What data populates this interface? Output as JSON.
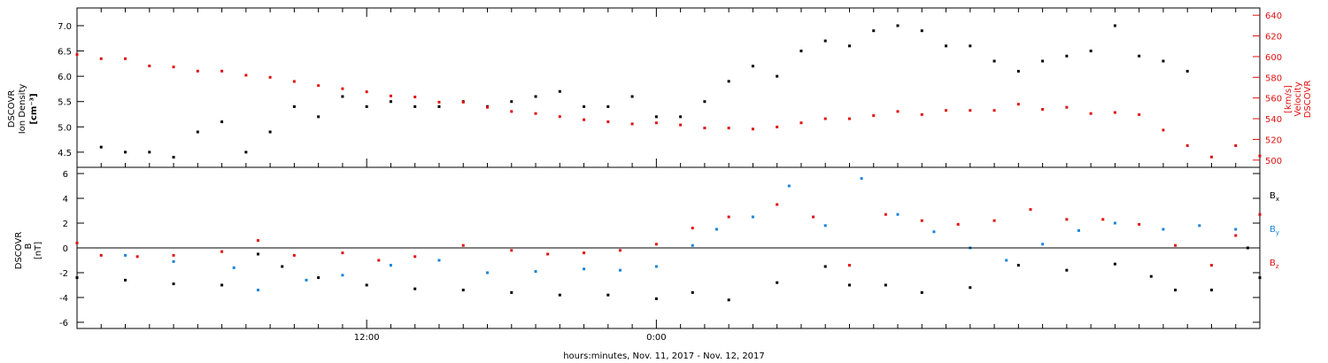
{
  "chart_data": [
    {
      "type": "scatter",
      "panel": "top",
      "ylabel_left": [
        "DSCOVR",
        "Ion Density",
        "[cm⁻³]"
      ],
      "ylabel_right": [
        "DSCOVR",
        "Velocity",
        "[km/s]"
      ],
      "left_ticks": [
        "7.0",
        "6.5",
        "6.0",
        "5.5",
        "5.0",
        "4.5"
      ],
      "right_ticks": [
        "640",
        "620",
        "600",
        "580",
        "560",
        "540",
        "520",
        "500"
      ],
      "left_ylim": [
        4.2,
        7.35
      ],
      "right_ylim": [
        493,
        647
      ],
      "series": [
        {
          "name": "",
          "axis": "left",
          "color": "#000000",
          "points": [
            [
              1.0,
              4.6
            ],
            [
              2.0,
              4.5
            ],
            [
              3.0,
              4.5
            ],
            [
              4.0,
              4.4
            ],
            [
              5.0,
              4.9
            ],
            [
              6.0,
              5.1
            ],
            [
              7.0,
              4.5
            ],
            [
              8.0,
              4.9
            ],
            [
              9.0,
              5.4
            ],
            [
              10.0,
              5.2
            ],
            [
              11.0,
              5.6
            ],
            [
              12.0,
              5.4
            ],
            [
              13.0,
              5.5
            ],
            [
              14.0,
              5.4
            ],
            [
              15.0,
              5.4
            ],
            [
              16.0,
              5.5
            ],
            [
              17.0,
              5.4
            ],
            [
              18.0,
              5.5
            ],
            [
              19.0,
              5.6
            ],
            [
              20.0,
              5.7
            ],
            [
              21.0,
              5.4
            ],
            [
              22.0,
              5.4
            ],
            [
              23.0,
              5.6
            ],
            [
              24.0,
              5.2
            ],
            [
              25.0,
              5.2
            ],
            [
              26.0,
              5.5
            ],
            [
              27.0,
              5.9
            ],
            [
              28.0,
              6.2
            ],
            [
              29.0,
              6.0
            ],
            [
              30.0,
              6.5
            ],
            [
              31.0,
              6.7
            ],
            [
              32.0,
              6.6
            ],
            [
              33.0,
              6.9
            ],
            [
              34.0,
              7.0
            ],
            [
              35.0,
              6.9
            ],
            [
              36.0,
              6.6
            ],
            [
              37.0,
              6.6
            ],
            [
              38.0,
              6.3
            ],
            [
              39.0,
              6.1
            ],
            [
              40.0,
              6.3
            ],
            [
              41.0,
              6.4
            ],
            [
              42.0,
              6.5
            ],
            [
              43.0,
              7.0
            ],
            [
              44.0,
              6.4
            ],
            [
              45.0,
              6.3
            ],
            [
              46.0,
              6.1
            ]
          ]
        },
        {
          "name": "",
          "axis": "right",
          "color": "#e01010",
          "points": [
            [
              0.0,
              602
            ],
            [
              1.0,
              598
            ],
            [
              2.0,
              598
            ],
            [
              3.0,
              591
            ],
            [
              4.0,
              590
            ],
            [
              5.0,
              586
            ],
            [
              6.0,
              586
            ],
            [
              7.0,
              582
            ],
            [
              8.0,
              580
            ],
            [
              9.0,
              576
            ],
            [
              10.0,
              572
            ],
            [
              11.0,
              569
            ],
            [
              12.0,
              566
            ],
            [
              13.0,
              562
            ],
            [
              14.0,
              561
            ],
            [
              15.0,
              556
            ],
            [
              16.0,
              556
            ],
            [
              17.0,
              551
            ],
            [
              18.0,
              547
            ],
            [
              19.0,
              545
            ],
            [
              20.0,
              542
            ],
            [
              21.0,
              539
            ],
            [
              22.0,
              537
            ],
            [
              23.0,
              535
            ],
            [
              24.0,
              536
            ],
            [
              25.0,
              534
            ],
            [
              26.0,
              531
            ],
            [
              27.0,
              531
            ],
            [
              28.0,
              530
            ],
            [
              29.0,
              532
            ],
            [
              30.0,
              536
            ],
            [
              31.0,
              540
            ],
            [
              32.0,
              540
            ],
            [
              33.0,
              543
            ],
            [
              34.0,
              547
            ],
            [
              35.0,
              544
            ],
            [
              36.0,
              548
            ],
            [
              37.0,
              548
            ],
            [
              38.0,
              548
            ],
            [
              39.0,
              554
            ],
            [
              40.0,
              549
            ],
            [
              41.0,
              551
            ],
            [
              42.0,
              545
            ],
            [
              43.0,
              546
            ],
            [
              44.0,
              544
            ],
            [
              45.0,
              529
            ],
            [
              46.0,
              514
            ],
            [
              47.0,
              503
            ],
            [
              48.0,
              514
            ],
            [
              49.0,
              504
            ]
          ]
        }
      ]
    },
    {
      "type": "scatter",
      "panel": "bottom",
      "ylabel": [
        "DSCOVR",
        "B",
        "[nT]"
      ],
      "yticks": [
        "6",
        "4",
        "2",
        "0",
        "-2",
        "-4",
        "-6"
      ],
      "ylim": [
        -6.5,
        6.5
      ],
      "reference_line": 0,
      "legend": [
        "B",
        "B",
        "B"
      ],
      "legend_subscripts": [
        "x",
        "y",
        "z"
      ],
      "legend_position": "right",
      "series": [
        {
          "name": "Bx",
          "color": "#000000",
          "points": [
            [
              0.0,
              -2.4
            ],
            [
              2.0,
              -2.6
            ],
            [
              4.0,
              -2.9
            ],
            [
              6.0,
              -3.0
            ],
            [
              7.5,
              -0.5
            ],
            [
              8.5,
              -1.5
            ],
            [
              10.0,
              -2.4
            ],
            [
              12.0,
              -3.0
            ],
            [
              14.0,
              -3.3
            ],
            [
              16.0,
              -3.4
            ],
            [
              18.0,
              -3.6
            ],
            [
              20.0,
              -3.8
            ],
            [
              22.0,
              -3.8
            ],
            [
              24.0,
              -4.1
            ],
            [
              25.5,
              -3.6
            ],
            [
              27.0,
              -4.2
            ],
            [
              29.0,
              -2.8
            ],
            [
              31.0,
              -1.5
            ],
            [
              32.0,
              -3.0
            ],
            [
              33.5,
              -3.0
            ],
            [
              35.0,
              -3.6
            ],
            [
              37.0,
              -3.2
            ],
            [
              39.0,
              -1.4
            ],
            [
              41.0,
              -1.8
            ],
            [
              43.0,
              -1.3
            ],
            [
              44.5,
              -2.3
            ],
            [
              45.5,
              -3.4
            ],
            [
              47.0,
              -3.4
            ],
            [
              48.5,
              0.0
            ],
            [
              49.0,
              -2.4
            ]
          ]
        },
        {
          "name": "By",
          "color": "#1a84d8",
          "points": [
            [
              0.0,
              0.4
            ],
            [
              2.0,
              -0.6
            ],
            [
              4.0,
              -1.1
            ],
            [
              6.5,
              -1.6
            ],
            [
              7.5,
              -3.4
            ],
            [
              9.5,
              -2.6
            ],
            [
              11.0,
              -2.2
            ],
            [
              13.0,
              -1.4
            ],
            [
              15.0,
              -1.0
            ],
            [
              17.0,
              -2.0
            ],
            [
              19.0,
              -1.9
            ],
            [
              21.0,
              -1.7
            ],
            [
              22.5,
              -1.8
            ],
            [
              24.0,
              -1.5
            ],
            [
              25.5,
              0.2
            ],
            [
              26.5,
              1.5
            ],
            [
              28.0,
              2.5
            ],
            [
              29.5,
              5.0
            ],
            [
              31.0,
              1.8
            ],
            [
              32.5,
              5.6
            ],
            [
              34.0,
              2.7
            ],
            [
              35.5,
              1.3
            ],
            [
              37.0,
              0.0
            ],
            [
              38.5,
              -1.0
            ],
            [
              40.0,
              0.3
            ],
            [
              41.5,
              1.4
            ],
            [
              43.0,
              2.0
            ],
            [
              45.0,
              1.5
            ],
            [
              46.5,
              1.8
            ],
            [
              48.0,
              1.5
            ],
            [
              49.0,
              2.7
            ]
          ]
        },
        {
          "name": "Bz",
          "color": "#e01010",
          "points": [
            [
              0.0,
              0.4
            ],
            [
              1.0,
              -0.6
            ],
            [
              2.5,
              -0.7
            ],
            [
              4.0,
              -0.6
            ],
            [
              6.0,
              -0.3
            ],
            [
              7.5,
              0.6
            ],
            [
              9.0,
              -0.6
            ],
            [
              11.0,
              -0.4
            ],
            [
              12.5,
              -1.0
            ],
            [
              14.0,
              -0.7
            ],
            [
              16.0,
              0.2
            ],
            [
              18.0,
              -0.2
            ],
            [
              19.5,
              -0.5
            ],
            [
              21.0,
              -0.4
            ],
            [
              22.5,
              -0.2
            ],
            [
              24.0,
              0.3
            ],
            [
              25.5,
              1.6
            ],
            [
              27.0,
              2.5
            ],
            [
              29.0,
              3.5
            ],
            [
              30.5,
              2.5
            ],
            [
              32.0,
              -1.4
            ],
            [
              33.5,
              2.7
            ],
            [
              35.0,
              2.2
            ],
            [
              36.5,
              1.9
            ],
            [
              38.0,
              2.2
            ],
            [
              39.5,
              3.1
            ],
            [
              41.0,
              2.3
            ],
            [
              42.5,
              2.3
            ],
            [
              44.0,
              1.9
            ],
            [
              45.5,
              0.2
            ],
            [
              47.0,
              -1.4
            ],
            [
              48.0,
              1.0
            ],
            [
              49.0,
              2.7
            ]
          ]
        }
      ]
    }
  ],
  "x_axis": {
    "xlim": [
      0,
      49
    ],
    "tick_labels": [
      {
        "label": "12:00",
        "hour": 12
      },
      {
        "label": "0:00",
        "hour": 24
      }
    ],
    "xlabel": "hours:minutes, Nov. 11, 2017 - Nov. 12, 2017"
  }
}
